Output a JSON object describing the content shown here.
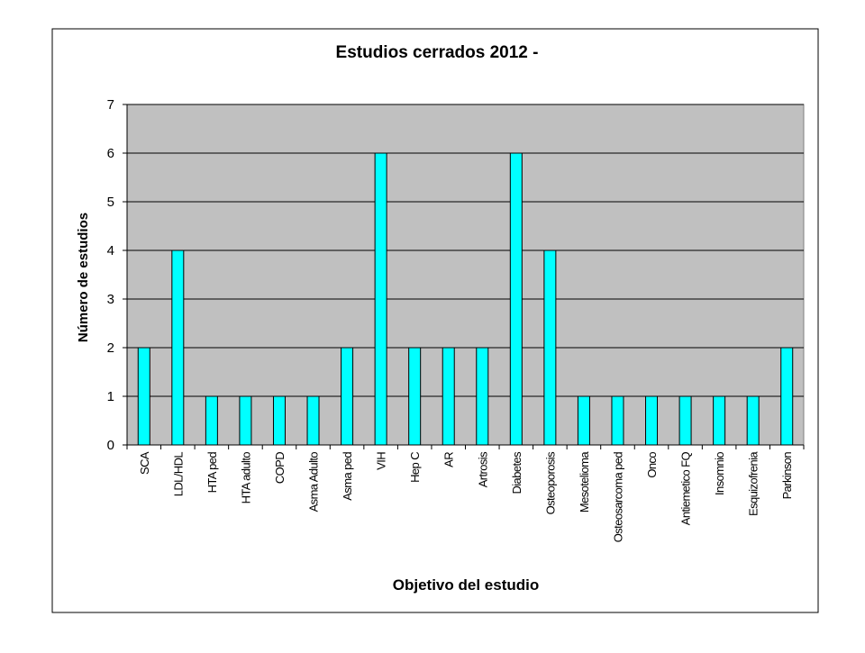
{
  "chart_data": {
    "type": "bar",
    "title": "Estudios cerrados 2012 -",
    "xlabel": "Objetivo del estudio",
    "ylabel": "Número de estudios",
    "categories": [
      "SCA",
      "LDL/HDL",
      "HTA ped",
      "HTA adulto",
      "COPD",
      "Asma Adulto",
      "Asma ped",
      "VIH",
      "Hep C",
      "AR",
      "Artrosis",
      "Diabetes",
      "Osteoporosis",
      "Mesotelioma",
      "Osteosarcoma ped",
      "Onco",
      "Antiemetico FQ",
      "Insomnio",
      "Esquizofrenia",
      "Parkinson"
    ],
    "values": [
      2,
      4,
      1,
      1,
      1,
      1,
      2,
      6,
      2,
      2,
      2,
      6,
      4,
      1,
      1,
      1,
      1,
      1,
      1,
      2
    ],
    "ylim": [
      0,
      7
    ],
    "yticks": [
      0,
      1,
      2,
      3,
      4,
      5,
      6,
      7
    ],
    "grid": true,
    "legend": "none",
    "colors": {
      "bar": "#00FFFF",
      "bar_edge": "#000000",
      "plot_bg": "#C0C0C0",
      "grid": "#000000",
      "frame": "#000000"
    }
  }
}
